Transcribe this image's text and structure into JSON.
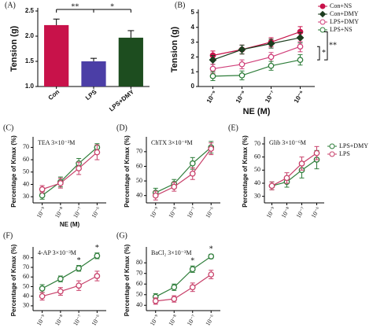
{
  "chart_data": [
    {
      "type": "bar",
      "label": "(A)",
      "ylabel": "Tension (g)",
      "categories": [
        "Con",
        "LPS",
        "LPS+DMY"
      ],
      "values": [
        2.22,
        1.5,
        1.97
      ],
      "errors": [
        0.12,
        0.06,
        0.14
      ],
      "colors": [
        "#c8124a",
        "#4b3ea6",
        "#1d4d1f"
      ],
      "ylim": [
        1,
        2.5
      ],
      "yticks": [
        {
          "value": 1,
          "label": "1.0"
        },
        {
          "value": 1.5,
          "label": "1.5"
        },
        {
          "value": 2,
          "label": "2.0"
        },
        {
          "value": 2.5,
          "label": "2.5"
        }
      ],
      "annotations": [
        "**",
        "*"
      ]
    },
    {
      "type": "line",
      "label": "(B)",
      "ylabel": "Tension (g)",
      "xlabel": "NE (M)",
      "categories": [
        "10⁻⁹",
        "10⁻⁸",
        "10⁻⁷",
        "10⁻⁶"
      ],
      "series": [
        {
          "name": "Con+NS",
          "color": "#c8124a",
          "marker": "circle",
          "filled": true,
          "values": [
            2.1,
            2.5,
            3.0,
            3.7
          ],
          "errors": [
            0.3,
            0.3,
            0.3,
            0.35
          ]
        },
        {
          "name": "Con+DMY",
          "color": "#1d3d1f",
          "marker": "diamond",
          "filled": true,
          "values": [
            1.8,
            2.5,
            2.9,
            3.3
          ],
          "errors": [
            0.3,
            0.3,
            0.3,
            0.35
          ]
        },
        {
          "name": "LPS+DMY",
          "color": "#d0407a",
          "marker": "circle",
          "filled": false,
          "values": [
            1.2,
            1.5,
            2.0,
            2.7
          ],
          "errors": [
            0.3,
            0.3,
            0.3,
            0.35
          ]
        },
        {
          "name": "LPS+NS",
          "color": "#2e7d3a",
          "marker": "circle",
          "filled": false,
          "values": [
            0.7,
            0.75,
            1.4,
            1.8
          ],
          "errors": [
            0.3,
            0.3,
            0.3,
            0.35
          ]
        }
      ],
      "ylim": [
        0,
        5
      ],
      "yticks": [
        0,
        1,
        2,
        3,
        4,
        5
      ],
      "legend": "outside right",
      "annotations": [
        "*",
        "**"
      ]
    },
    {
      "type": "line",
      "label": "(C)",
      "title": "TEA 3×10⁻³M",
      "ylabel": "Percentage of Kmax (%)",
      "xlabel": "NE (M)",
      "categories": [
        "10⁻⁹",
        "10⁻⁸",
        "10⁻⁷",
        "10⁻⁶"
      ],
      "series": [
        {
          "name": "LPS+DMY",
          "color": "#2e7d3a",
          "marker": "circle",
          "filled": false,
          "values": [
            31,
            42,
            57,
            70
          ],
          "errors": [
            3,
            4,
            4,
            3
          ]
        },
        {
          "name": "LPS",
          "color": "#c8406a",
          "marker": "circle",
          "filled": false,
          "values": [
            36,
            41,
            53,
            66
          ],
          "errors": [
            3,
            4,
            5,
            6
          ]
        }
      ],
      "ylim": [
        25,
        76
      ],
      "yticks": [
        30,
        40,
        50,
        60,
        70
      ]
    },
    {
      "type": "line",
      "label": "(D)",
      "title": "ChTX 3×10⁻⁸M",
      "ylabel": "Percentage of Kmax (%)",
      "categories": [
        "10⁻⁹",
        "10⁻⁸",
        "10⁻⁷",
        "10⁻⁶"
      ],
      "series": [
        {
          "name": "LPS+DMY",
          "color": "#2e7d3a",
          "marker": "circle",
          "filled": false,
          "values": [
            42,
            48,
            62,
            73
          ],
          "errors": [
            3,
            3,
            4,
            4
          ]
        },
        {
          "name": "LPS",
          "color": "#c8406a",
          "marker": "circle",
          "filled": false,
          "values": [
            40,
            46,
            55,
            72
          ],
          "errors": [
            3,
            3,
            4,
            4
          ]
        }
      ],
      "ylim": [
        35,
        78
      ],
      "yticks": [
        40,
        50,
        60,
        70
      ]
    },
    {
      "type": "line",
      "label": "(E)",
      "title": "Glib 3×10⁻⁶M",
      "ylabel": "Percentage of Kmax (%)",
      "categories": [
        "10⁻⁹",
        "10⁻⁸",
        "10⁻⁷",
        "10⁻⁶"
      ],
      "series": [
        {
          "name": "LPS+DMY",
          "color": "#2e7d3a",
          "marker": "circle",
          "filled": false,
          "values": [
            38,
            41,
            50,
            58
          ],
          "errors": [
            3,
            4,
            6,
            7
          ]
        },
        {
          "name": "LPS",
          "color": "#c8406a",
          "marker": "circle",
          "filled": false,
          "values": [
            38,
            44,
            55,
            63
          ],
          "errors": [
            3,
            4,
            5,
            5
          ]
        }
      ],
      "ylim": [
        25,
        73
      ],
      "yticks": [
        30,
        40,
        50,
        60,
        70
      ],
      "legend": "outside right"
    },
    {
      "type": "line",
      "label": "(F)",
      "title": "4-AP 3×10⁻³M",
      "ylabel": "Percentage of Kmax (%)",
      "categories": [
        "10⁻⁹",
        "10⁻⁸",
        "10⁻⁷",
        "10⁻⁶"
      ],
      "series": [
        {
          "name": "LPS+DMY",
          "color": "#2e7d3a",
          "marker": "circle",
          "filled": false,
          "values": [
            48,
            58,
            69,
            82
          ],
          "errors": [
            4,
            3,
            3,
            3
          ]
        },
        {
          "name": "LPS",
          "color": "#c8406a",
          "marker": "circle",
          "filled": false,
          "values": [
            40,
            45,
            51,
            61
          ],
          "errors": [
            4,
            4,
            5,
            5
          ]
        }
      ],
      "ylim": [
        25,
        88
      ],
      "yticks": [
        30,
        40,
        50,
        60,
        70,
        80
      ],
      "annotations": [
        "*",
        "*"
      ]
    },
    {
      "type": "line",
      "label": "(G)",
      "title": "BaCl₂ 3×10⁻³M",
      "ylabel": "Percentage of Kmax (%)",
      "categories": [
        "10⁻⁹",
        "10⁻⁸",
        "10⁻⁷",
        "10⁻⁶"
      ],
      "series": [
        {
          "name": "LPS+DMY",
          "color": "#2e7d3a",
          "marker": "circle",
          "filled": false,
          "values": [
            48,
            57,
            74,
            86
          ],
          "errors": [
            3,
            3,
            3,
            2
          ]
        },
        {
          "name": "LPS",
          "color": "#c8406a",
          "marker": "circle",
          "filled": false,
          "values": [
            44,
            46,
            57,
            69
          ],
          "errors": [
            3,
            3,
            4,
            4
          ]
        }
      ],
      "ylim": [
        35,
        92
      ],
      "yticks": [
        40,
        50,
        60,
        70,
        80
      ],
      "annotations": [
        "*",
        "*"
      ]
    }
  ]
}
